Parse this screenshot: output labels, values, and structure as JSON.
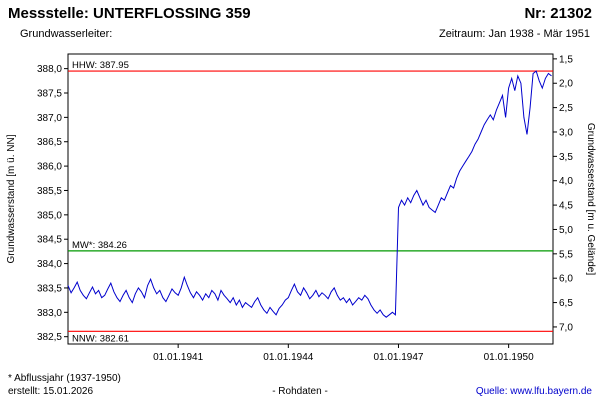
{
  "header": {
    "station_label": "Messstelle: UNTERFLOSSING 359",
    "number_label": "Nr: 21302",
    "aquifer_label": "Grundwasserleiter:",
    "period_label": "Zeitraum: Jan 1938 - Mär 1951"
  },
  "footer": {
    "note": "* Abflussjahr (1937-1950)",
    "created": "erstellt: 15.01.2026",
    "center": "- Rohdaten -",
    "source_label": "Quelle: ",
    "source_url": "www.lfu.bayern.de"
  },
  "chart_data": {
    "type": "line",
    "title": "",
    "ylabel_left": "Grundwasserstand [m ü. NN]",
    "ylabel_right": "Grundwasserstand [m u. Gelände]",
    "y_left_ticks": [
      388.0,
      387.5,
      387.0,
      386.5,
      386.0,
      385.5,
      385.0,
      384.5,
      384.0,
      383.5,
      383.0,
      382.5
    ],
    "y_right_ticks": [
      1.5,
      2.0,
      2.5,
      3.0,
      3.5,
      4.0,
      4.5,
      5.0,
      5.5,
      6.0,
      6.5,
      7.0
    ],
    "ground_level": 389.7,
    "ylim_left": [
      382.35,
      388.3
    ],
    "x_ticks": [
      "01.01.1941",
      "01.01.1944",
      "01.01.1947",
      "01.01.1950"
    ],
    "x_tick_months": [
      36,
      72,
      108,
      144
    ],
    "x_domain_months": 158.5,
    "x_range": {
      "start": "Jan 1938",
      "end": "Mär 1951"
    },
    "grid": false,
    "reference_lines": [
      {
        "name": "hhw",
        "label": "HHW: 387.95",
        "value": 387.95,
        "color": "#ff0000",
        "label_position": "above"
      },
      {
        "name": "mw",
        "label": "MW*: 384.26",
        "value": 384.26,
        "color": "#009900",
        "label_position": "above"
      },
      {
        "name": "nnw",
        "label": "NNW: 382.61",
        "value": 382.61,
        "color": "#ff0000",
        "label_position": "below"
      }
    ],
    "series": [
      {
        "name": "Grundwasserstand Rohdaten",
        "color": "#0000cd",
        "start": "1938-01",
        "step_months": 1,
        "values": [
          383.55,
          383.4,
          383.5,
          383.62,
          383.45,
          383.35,
          383.28,
          383.4,
          383.52,
          383.38,
          383.45,
          383.3,
          383.35,
          383.48,
          383.6,
          383.42,
          383.3,
          383.22,
          383.35,
          383.45,
          383.3,
          383.2,
          383.38,
          383.5,
          383.42,
          383.3,
          383.55,
          383.68,
          383.5,
          383.38,
          383.45,
          383.3,
          383.22,
          383.35,
          383.48,
          383.4,
          383.35,
          383.5,
          383.72,
          383.55,
          383.4,
          383.3,
          383.42,
          383.35,
          383.25,
          383.38,
          383.3,
          383.45,
          383.38,
          383.25,
          383.45,
          383.35,
          383.28,
          383.2,
          383.3,
          383.15,
          383.25,
          383.1,
          383.2,
          383.15,
          383.1,
          383.22,
          383.3,
          383.15,
          383.05,
          382.98,
          383.1,
          383.02,
          382.95,
          383.08,
          383.15,
          383.25,
          383.3,
          383.45,
          383.58,
          383.42,
          383.35,
          383.5,
          383.4,
          383.28,
          383.35,
          383.45,
          383.32,
          383.4,
          383.35,
          383.28,
          383.42,
          383.5,
          383.35,
          383.25,
          383.3,
          383.2,
          383.28,
          383.15,
          383.22,
          383.3,
          383.25,
          383.35,
          383.28,
          383.15,
          383.05,
          382.98,
          383.05,
          382.95,
          382.9,
          382.95,
          383.0,
          382.95,
          385.15,
          385.3,
          385.2,
          385.35,
          385.25,
          385.4,
          385.5,
          385.35,
          385.2,
          385.3,
          385.15,
          385.1,
          385.05,
          385.2,
          385.35,
          385.3,
          385.45,
          385.6,
          385.55,
          385.75,
          385.9,
          386.0,
          386.1,
          386.2,
          386.3,
          386.45,
          386.55,
          386.7,
          386.85,
          386.95,
          387.05,
          386.95,
          387.15,
          387.3,
          387.45,
          387.0,
          387.6,
          387.8,
          387.55,
          387.85,
          387.7,
          387.0,
          386.65,
          387.2,
          387.9,
          387.95,
          387.75,
          387.6,
          387.8,
          387.9,
          387.85
        ]
      }
    ]
  }
}
